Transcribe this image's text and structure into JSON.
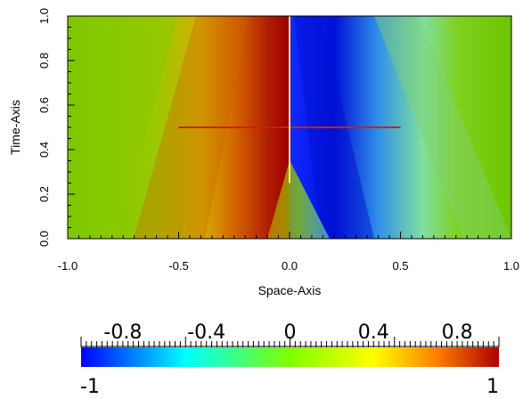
{
  "chart_data": {
    "type": "heatmap",
    "title": "",
    "xlabel": "Space-Axis",
    "ylabel": "Time-Axis",
    "xlim": [
      -1.0,
      1.0
    ],
    "ylim": [
      0.0,
      1.0
    ],
    "x_ticks": [
      "-1.0",
      "-0.5",
      "0.0",
      "0.5",
      "1.0"
    ],
    "y_ticks": [
      "0.0",
      "0.2",
      "0.4",
      "0.6",
      "0.8",
      "1.0"
    ],
    "colorbar": {
      "range": [
        -1,
        1
      ],
      "tick_labels": [
        "-0.8",
        "-0.4",
        "0",
        "0.4",
        "0.8"
      ],
      "end_labels": [
        "-1",
        "1"
      ],
      "colormap": [
        "#0000ff",
        "#00ffff",
        "#7fff00",
        "#ffff00",
        "#ff7f00",
        "#b00000"
      ]
    },
    "overlay_lines": [
      {
        "name": "horizontal-line",
        "color": "#cc2200",
        "x": [
          -0.5,
          0.5
        ],
        "y": [
          0.5,
          0.5
        ]
      },
      {
        "name": "vertical-line",
        "color": "#ffe680",
        "x": [
          0.0,
          0.0
        ],
        "y": [
          0.25,
          1.0
        ]
      }
    ]
  }
}
